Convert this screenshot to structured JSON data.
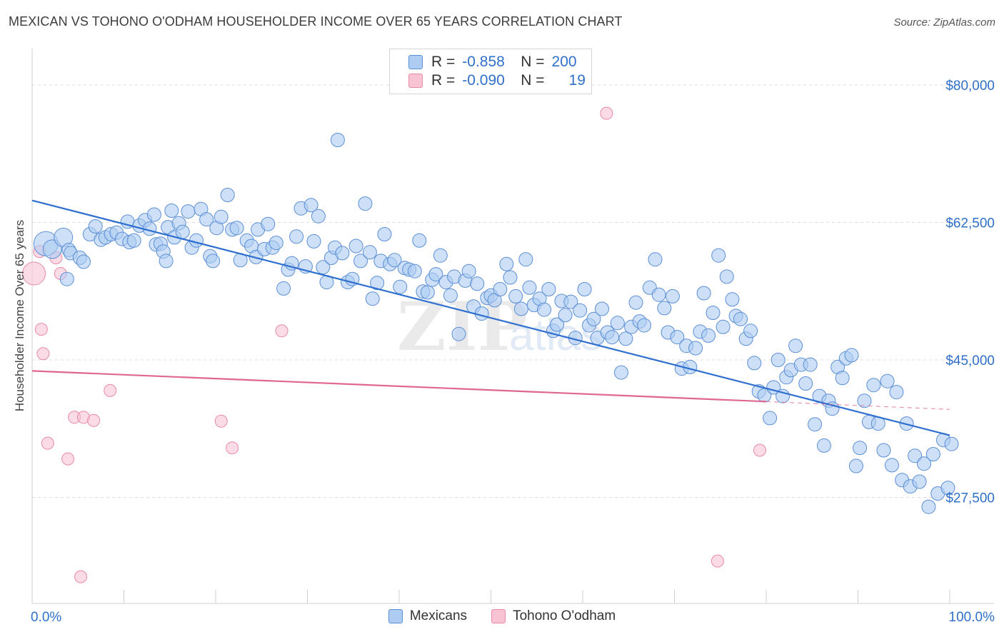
{
  "title": "MEXICAN VS TOHONO O'ODHAM HOUSEHOLDER INCOME OVER 65 YEARS CORRELATION CHART",
  "source": "Source: ZipAtlas.com",
  "watermark": {
    "zip": "ZIP",
    "atlas": "atlas"
  },
  "colors": {
    "blue_fill": "#aecbf2",
    "blue_stroke": "#5b8fd6",
    "blue_line": "#2f6fcf",
    "pink_fill": "#f8c3d3",
    "pink_stroke": "#e88aa8",
    "pink_line": "#e06790",
    "tick_label": "#3070c8",
    "grid": "#dddddd"
  },
  "legend": {
    "rows": [
      {
        "r_label": "R =",
        "r_value": "-0.858",
        "n_label": "N =",
        "n_value": "200",
        "series": "blue"
      },
      {
        "r_label": "R =",
        "r_value": "-0.090",
        "n_label": "N =",
        "n_value": "19",
        "series": "pink"
      }
    ]
  },
  "bottom_legend": [
    {
      "label": "Mexicans",
      "series": "blue"
    },
    {
      "label": "Tohono O'odham",
      "series": "pink"
    }
  ],
  "chart_data": {
    "type": "scatter",
    "title": "MEXICAN VS TOHONO O'ODHAM HOUSEHOLDER INCOME OVER 65 YEARS CORRELATION CHART",
    "xlabel": "",
    "ylabel": "Householder Income Over 65 years",
    "xlim": [
      0,
      100
    ],
    "ylim": [
      14000,
      84000
    ],
    "x_tick_labels": [
      "0.0%",
      "100.0%"
    ],
    "y_ticks": [
      80000,
      62500,
      45000,
      27500
    ],
    "y_tick_labels": [
      "$80,000",
      "$62,500",
      "$45,000",
      "$27,500"
    ],
    "grid": true,
    "legend_placement": "top-center",
    "series": [
      {
        "name": "Mexicans",
        "color": "#aecbf2",
        "trend": {
          "x": [
            0,
            100
          ],
          "y": [
            65300,
            35400
          ]
        },
        "points": [
          [
            1.5,
            59800
          ],
          [
            2.2,
            59100
          ],
          [
            3.4,
            60600
          ],
          [
            4.0,
            59000
          ],
          [
            4.2,
            58600
          ],
          [
            3.8,
            55300
          ],
          [
            5.2,
            58000
          ],
          [
            5.6,
            57500
          ],
          [
            6.3,
            61000
          ],
          [
            6.9,
            62000
          ],
          [
            7.5,
            60300
          ],
          [
            8.0,
            60600
          ],
          [
            8.6,
            61000
          ],
          [
            9.2,
            61200
          ],
          [
            9.8,
            60400
          ],
          [
            10.4,
            62600
          ],
          [
            10.6,
            60000
          ],
          [
            11.1,
            60200
          ],
          [
            11.7,
            62100
          ],
          [
            12.3,
            62800
          ],
          [
            12.8,
            61700
          ],
          [
            13.3,
            63500
          ],
          [
            13.5,
            59700
          ],
          [
            14.0,
            59800
          ],
          [
            14.3,
            58800
          ],
          [
            14.6,
            57600
          ],
          [
            14.8,
            61900
          ],
          [
            15.2,
            64000
          ],
          [
            15.5,
            60600
          ],
          [
            16.0,
            62400
          ],
          [
            16.4,
            61300
          ],
          [
            17.0,
            63900
          ],
          [
            17.4,
            59300
          ],
          [
            17.9,
            60200
          ],
          [
            18.4,
            64200
          ],
          [
            19.0,
            62900
          ],
          [
            19.4,
            58200
          ],
          [
            19.7,
            57600
          ],
          [
            20.1,
            61800
          ],
          [
            20.6,
            63200
          ],
          [
            21.3,
            66000
          ],
          [
            21.8,
            61600
          ],
          [
            22.3,
            61800
          ],
          [
            22.7,
            57700
          ],
          [
            23.4,
            60200
          ],
          [
            23.9,
            59500
          ],
          [
            24.4,
            58100
          ],
          [
            24.6,
            61600
          ],
          [
            25.3,
            59100
          ],
          [
            25.7,
            62300
          ],
          [
            26.2,
            59300
          ],
          [
            26.6,
            59900
          ],
          [
            27.4,
            54100
          ],
          [
            27.9,
            56500
          ],
          [
            28.3,
            57300
          ],
          [
            28.8,
            60700
          ],
          [
            29.3,
            64300
          ],
          [
            29.8,
            56900
          ],
          [
            30.4,
            64700
          ],
          [
            30.7,
            60100
          ],
          [
            31.2,
            63300
          ],
          [
            31.7,
            56800
          ],
          [
            32.1,
            54900
          ],
          [
            32.6,
            58000
          ],
          [
            33.0,
            59300
          ],
          [
            33.3,
            73000
          ],
          [
            33.8,
            58600
          ],
          [
            34.4,
            54900
          ],
          [
            34.9,
            55300
          ],
          [
            35.3,
            59500
          ],
          [
            35.8,
            57600
          ],
          [
            36.3,
            64900
          ],
          [
            36.8,
            58700
          ],
          [
            37.1,
            52800
          ],
          [
            37.6,
            54800
          ],
          [
            38.0,
            57600
          ],
          [
            38.4,
            61000
          ],
          [
            39.0,
            57200
          ],
          [
            39.5,
            57700
          ],
          [
            40.1,
            54300
          ],
          [
            40.6,
            56700
          ],
          [
            41.1,
            56500
          ],
          [
            41.7,
            56300
          ],
          [
            42.2,
            60200
          ],
          [
            42.6,
            53700
          ],
          [
            43.1,
            53600
          ],
          [
            43.6,
            55200
          ],
          [
            44.0,
            55900
          ],
          [
            44.5,
            58300
          ],
          [
            45.1,
            54900
          ],
          [
            45.6,
            53200
          ],
          [
            46.0,
            55600
          ],
          [
            46.5,
            48300
          ],
          [
            47.2,
            55100
          ],
          [
            47.6,
            56300
          ],
          [
            48.1,
            51800
          ],
          [
            48.5,
            54700
          ],
          [
            49.0,
            50900
          ],
          [
            49.6,
            52900
          ],
          [
            50.0,
            53200
          ],
          [
            50.4,
            52600
          ],
          [
            51.0,
            54000
          ],
          [
            51.7,
            57200
          ],
          [
            52.1,
            55500
          ],
          [
            52.7,
            53100
          ],
          [
            53.3,
            51500
          ],
          [
            53.8,
            57800
          ],
          [
            54.2,
            54200
          ],
          [
            54.7,
            52000
          ],
          [
            55.3,
            52800
          ],
          [
            55.8,
            51400
          ],
          [
            56.3,
            54000
          ],
          [
            56.8,
            48700
          ],
          [
            57.2,
            49500
          ],
          [
            57.7,
            52500
          ],
          [
            58.1,
            50700
          ],
          [
            58.7,
            52400
          ],
          [
            59.2,
            47800
          ],
          [
            59.7,
            51300
          ],
          [
            60.2,
            54000
          ],
          [
            60.7,
            49400
          ],
          [
            61.2,
            50200
          ],
          [
            61.6,
            47800
          ],
          [
            62.1,
            51500
          ],
          [
            62.7,
            48500
          ],
          [
            63.2,
            47900
          ],
          [
            63.8,
            49700
          ],
          [
            64.2,
            43400
          ],
          [
            64.7,
            47700
          ],
          [
            65.3,
            49200
          ],
          [
            65.8,
            52300
          ],
          [
            66.2,
            49900
          ],
          [
            66.7,
            49400
          ],
          [
            67.3,
            54200
          ],
          [
            67.9,
            57800
          ],
          [
            68.3,
            53300
          ],
          [
            68.9,
            51600
          ],
          [
            69.3,
            48500
          ],
          [
            69.8,
            53100
          ],
          [
            70.3,
            47900
          ],
          [
            70.8,
            43900
          ],
          [
            71.3,
            46800
          ],
          [
            71.7,
            44100
          ],
          [
            72.3,
            46500
          ],
          [
            72.8,
            48600
          ],
          [
            73.2,
            53500
          ],
          [
            73.7,
            48100
          ],
          [
            74.2,
            51000
          ],
          [
            74.8,
            58300
          ],
          [
            75.3,
            49200
          ],
          [
            75.7,
            55600
          ],
          [
            76.3,
            52700
          ],
          [
            76.7,
            50600
          ],
          [
            77.2,
            50200
          ],
          [
            77.8,
            47700
          ],
          [
            78.3,
            48700
          ],
          [
            78.7,
            44600
          ],
          [
            79.2,
            41000
          ],
          [
            79.8,
            40500
          ],
          [
            80.4,
            37600
          ],
          [
            80.8,
            41500
          ],
          [
            81.3,
            45000
          ],
          [
            81.8,
            40400
          ],
          [
            82.2,
            42800
          ],
          [
            82.7,
            43700
          ],
          [
            83.2,
            46800
          ],
          [
            83.8,
            44400
          ],
          [
            84.3,
            42000
          ],
          [
            84.8,
            44400
          ],
          [
            85.3,
            36800
          ],
          [
            85.8,
            40400
          ],
          [
            86.3,
            34100
          ],
          [
            86.8,
            39800
          ],
          [
            87.2,
            38800
          ],
          [
            87.8,
            44100
          ],
          [
            88.3,
            42700
          ],
          [
            88.7,
            45200
          ],
          [
            89.3,
            45600
          ],
          [
            89.8,
            31500
          ],
          [
            90.2,
            33800
          ],
          [
            90.7,
            39800
          ],
          [
            91.2,
            37100
          ],
          [
            91.7,
            41800
          ],
          [
            92.2,
            36900
          ],
          [
            92.8,
            33500
          ],
          [
            93.2,
            42300
          ],
          [
            93.7,
            31600
          ],
          [
            94.2,
            40900
          ],
          [
            94.8,
            29700
          ],
          [
            95.3,
            36900
          ],
          [
            95.7,
            28900
          ],
          [
            96.2,
            32800
          ],
          [
            96.7,
            29500
          ],
          [
            97.2,
            31800
          ],
          [
            97.7,
            26300
          ],
          [
            98.2,
            33000
          ],
          [
            98.7,
            28000
          ],
          [
            99.3,
            34800
          ],
          [
            99.8,
            28700
          ],
          [
            100.2,
            34300
          ]
        ]
      },
      {
        "name": "Tohono O'odham",
        "color": "#f8c3d3",
        "trend": {
          "x": [
            0,
            80
          ],
          "y": [
            43600,
            39700
          ],
          "dashed_to": {
            "x": 100,
            "y": 38700
          }
        },
        "points": [
          [
            0.2,
            56000
          ],
          [
            0.8,
            58800
          ],
          [
            1.0,
            48900
          ],
          [
            1.2,
            45800
          ],
          [
            1.7,
            34400
          ],
          [
            3.1,
            56000
          ],
          [
            3.9,
            32400
          ],
          [
            4.6,
            37700
          ],
          [
            5.3,
            17400
          ],
          [
            5.6,
            37700
          ],
          [
            6.7,
            37300
          ],
          [
            8.5,
            41100
          ],
          [
            20.6,
            37200
          ],
          [
            21.8,
            33800
          ],
          [
            27.2,
            48700
          ],
          [
            62.6,
            76400
          ],
          [
            74.7,
            19400
          ],
          [
            79.3,
            33500
          ],
          [
            2.6,
            58000
          ]
        ]
      }
    ]
  }
}
